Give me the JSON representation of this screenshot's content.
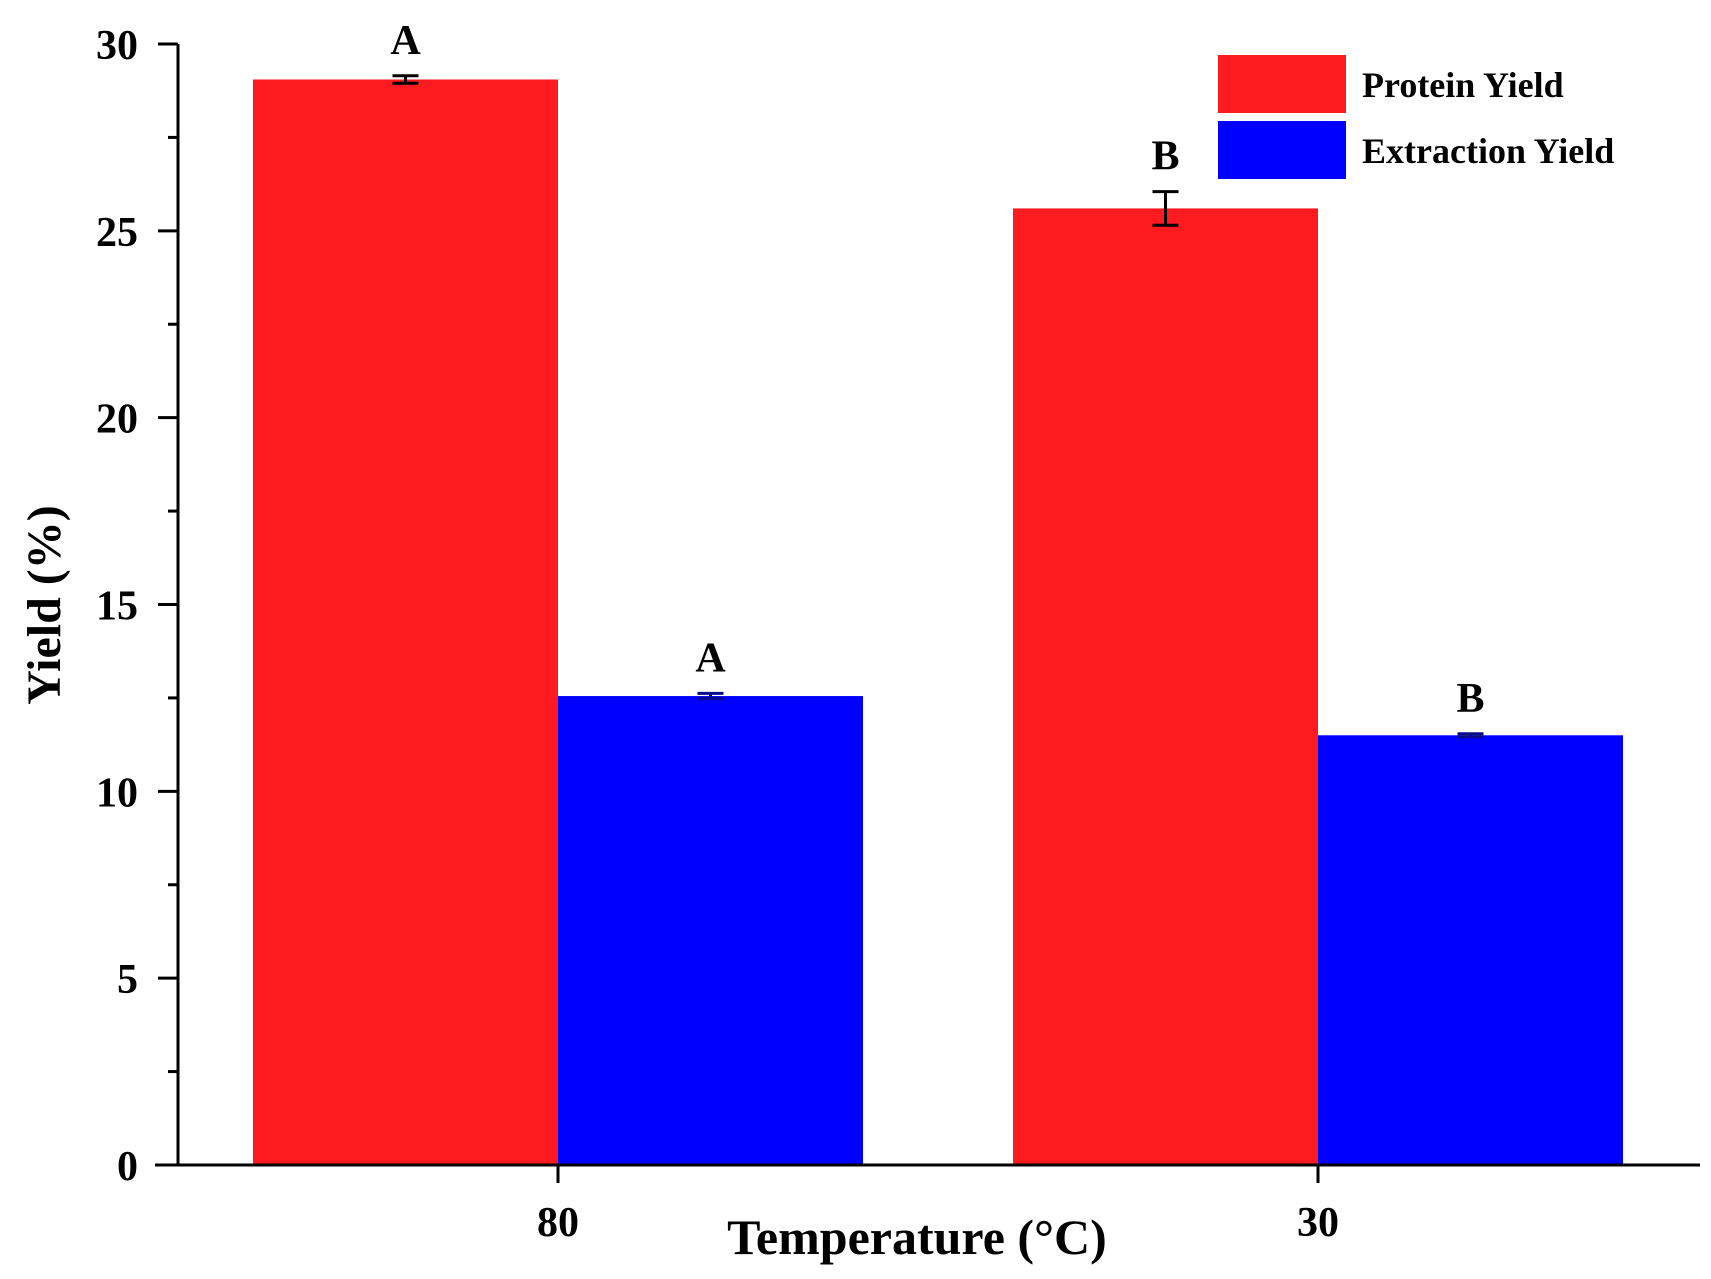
{
  "chart_data": {
    "type": "bar",
    "title": "",
    "xlabel": "Temperature (°C)",
    "ylabel": "Yield (%)",
    "ylim": [
      0,
      30
    ],
    "yticks": [
      0,
      5,
      10,
      15,
      20,
      25,
      30
    ],
    "ytick_labels": [
      "0",
      "5",
      "10",
      "15",
      "20",
      "25",
      "30"
    ],
    "categories": [
      "80",
      "30"
    ],
    "legend_position": "top-right",
    "series": [
      {
        "name": "Protein Yield",
        "color": "#fe1b1f",
        "values": [
          29.05,
          25.6
        ],
        "errors": [
          0.1,
          0.45
        ],
        "letters": [
          "A",
          "B"
        ]
      },
      {
        "name": "Extraction Yield",
        "color": "#0000fe",
        "values": [
          12.55,
          11.5
        ],
        "errors": [
          0.07,
          0.04
        ],
        "letters": [
          "A",
          "B"
        ]
      }
    ]
  }
}
